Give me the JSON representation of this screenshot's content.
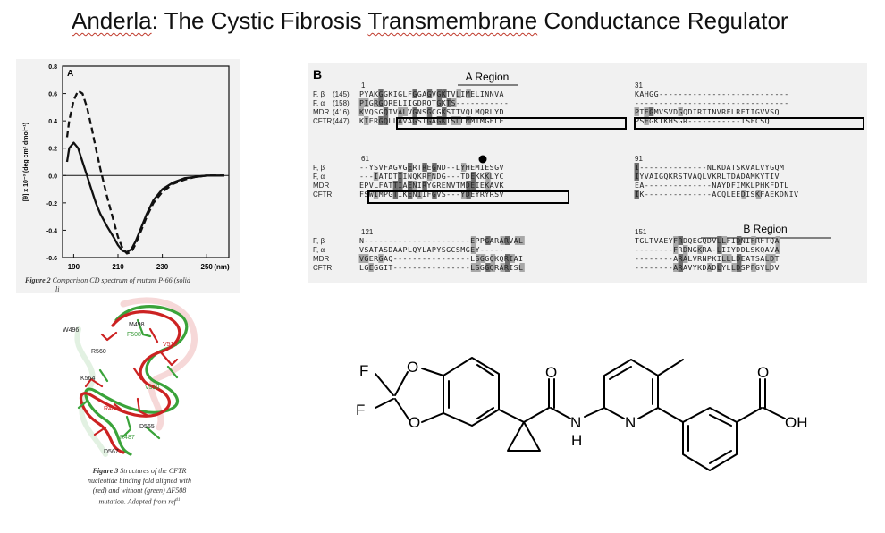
{
  "slide": {
    "title_prefix": "Anderla",
    "title_rest": ": The Cystic Fibrosis ",
    "title_word_trans": "Transmembrane",
    "title_end": " Conductance Regulator"
  },
  "figure_a": {
    "panel_label": "A",
    "ylabel": "[θ] x 10⁻³ (deg cm² dmol⁻¹)",
    "xlabel_unit": "(nm)",
    "caption_bold": "Figure 2",
    "caption": "Comparison CD spectrum of mutant P-66 (solid",
    "caption_line2": "li"
  },
  "chart_data": {
    "type": "line",
    "xlabel": "(nm)",
    "ylabel": "[θ] x 10⁻³ (deg cm² dmol⁻¹)",
    "xlim": [
      185,
      260
    ],
    "ylim": [
      -0.6,
      0.8
    ],
    "x_ticks": [
      190,
      210,
      230,
      250
    ],
    "y_ticks": [
      0.8,
      0.6,
      0.4,
      0.2,
      0.0,
      -0.2,
      -0.4,
      -0.6
    ],
    "y_tick_labels": [
      "0.8",
      "0.6",
      "0.4",
      "0.2",
      "0.0",
      "-0.2",
      "-0.4",
      "-0.6"
    ],
    "series": [
      {
        "style": "dashed",
        "x": [
          187,
          188,
          190,
          192,
          194,
          196,
          198,
          200,
          202,
          205,
          208,
          210,
          212,
          214,
          216,
          218,
          220,
          223,
          226,
          230,
          235,
          240,
          245,
          250,
          255,
          258
        ],
        "y": [
          0.28,
          0.4,
          0.55,
          0.62,
          0.6,
          0.5,
          0.36,
          0.2,
          0.05,
          -0.15,
          -0.33,
          -0.45,
          -0.53,
          -0.57,
          -0.56,
          -0.5,
          -0.42,
          -0.3,
          -0.2,
          -0.12,
          -0.06,
          -0.03,
          -0.01,
          0.0,
          0.0,
          0.0
        ]
      },
      {
        "style": "solid",
        "x": [
          187,
          188,
          190,
          192,
          194,
          196,
          198,
          200,
          202,
          205,
          208,
          210,
          212,
          214,
          216,
          218,
          220,
          223,
          226,
          230,
          235,
          240,
          245,
          250,
          255,
          258
        ],
        "y": [
          0.1,
          0.2,
          0.24,
          0.2,
          0.1,
          0.0,
          -0.1,
          -0.2,
          -0.28,
          -0.37,
          -0.45,
          -0.51,
          -0.55,
          -0.56,
          -0.54,
          -0.48,
          -0.4,
          -0.28,
          -0.18,
          -0.1,
          -0.05,
          -0.02,
          -0.01,
          0.0,
          0.0,
          0.0
        ]
      }
    ]
  },
  "figure_b": {
    "panel_label": "B",
    "region_a_label": "A Region",
    "region_b_label": "B Region",
    "blocks": [
      {
        "start_left": "1",
        "start_right": "31",
        "rows": [
          {
            "name": "F, β",
            "num": "(145)",
            "left": "PYAKGGKIGLFGGAGVGKTVLIMELINNVA",
            "right": "KAHGG---------------------------"
          },
          {
            "name": "F, α",
            "num": "(158)",
            "left": "PIGRGQRELIIGDRQTGKTS-----------",
            "right": "--------------------------------"
          },
          {
            "name": "MDR",
            "num": "(416)",
            "left": "KVQSGQTVALVGNSGCGKSTTVQLMQRLYD",
            "right": "PTEGMVSVDGQDIRTINVRFLREIIGVVSQ"
          },
          {
            "name": "CFTR",
            "num": "(447)",
            "left": "KIERGQLLAVAGSTGAGKTSLLMMIMGELE",
            "right": "PSEGKIKHSGR-----------ISFCSQ"
          }
        ]
      },
      {
        "start_left": "61",
        "start_right": "91",
        "rows": [
          {
            "name": "F, β",
            "num": "",
            "left": "--YSVFAGVGERTREGND--LYHEMIESGV",
            "right": "I--------------NLKDATSKVALVYGQM"
          },
          {
            "name": "F, α",
            "num": "",
            "left": "---IATDTIINQKRFNDG---TDEKKKLYC",
            "right": "IYVAIGQKRSTVAQLVKRLTDADAMKYTIV"
          },
          {
            "name": "MDR",
            "num": "",
            "left": "EPVLFATTIAENIRYGRENVTMDEIEKAVK",
            "right": "EA--------------NAYDFIMKLPHKFDTL"
          },
          {
            "name": "CFTR",
            "num": "",
            "left": "FSWIMPGTIKENIIFGVS---YDEYRYRSV",
            "right": "IK--------------ACQLEEDISKFAEKDNIV"
          }
        ]
      },
      {
        "start_left": "121",
        "start_right": "151",
        "rows": [
          {
            "name": "F, β",
            "num": "",
            "left": "N----------------------EPPGARARVAL",
            "right": "TGLTVAEYFRDQEGQDVLLFIDNIFRFTQA"
          },
          {
            "name": "F, α",
            "num": "",
            "left": "VSATASDAAPLQYLAPYSGCSMGEY-----",
            "right": "--------FRDNGKRA-LIIYDDLSKQAVA"
          },
          {
            "name": "MDR",
            "num": "",
            "left": "VGERGAQ----------------LSGGQKQRIAI",
            "right": "--------ARALVRNPKILLLDEATSALDT"
          },
          {
            "name": "CFTR",
            "num": "",
            "left": "LGEGGIT----------------LSGGQRARISL",
            "right": "--------ARAVYKDADLYLLDSPFGYLDV"
          }
        ]
      }
    ]
  },
  "figure_3": {
    "caption_bold": "Figure 3",
    "caption_lines": [
      "Structures of the CFTR",
      "nucleotide binding fold aligned with",
      "(red) and without (green) ΔF508",
      "mutation. Adopted from ref"
    ],
    "caption_sup": "11",
    "residue_labels": [
      {
        "text": "W496",
        "color": "#222222"
      },
      {
        "text": "M498",
        "color": "#222222"
      },
      {
        "text": "F508",
        "color": "#3a9a3a"
      },
      {
        "text": "V510",
        "color": "#cc2222"
      },
      {
        "text": "R560",
        "color": "#222222"
      },
      {
        "text": "K564",
        "color": "#222222"
      },
      {
        "text": "V510",
        "color": "#3a9a3a"
      },
      {
        "text": "R487",
        "color": "#cc2222"
      },
      {
        "text": "D565",
        "color": "#222222"
      },
      {
        "text": "R487",
        "color": "#3a9a3a"
      },
      {
        "text": "D567",
        "color": "#222222"
      }
    ]
  },
  "structure": {
    "atoms": {
      "f1": "F",
      "f2": "F",
      "o1": "O",
      "o2": "O",
      "o_carbonyl": "O",
      "n_amide": "N",
      "h_amide": "H",
      "n_pyridine": "N",
      "o_acid": "O",
      "oh_acid": "OH"
    }
  },
  "colors": {
    "red_chain": "#cc2222",
    "green_chain": "#3aa33a",
    "shade": "#9a9a9a",
    "dark_shade": "#6a6a6a"
  }
}
